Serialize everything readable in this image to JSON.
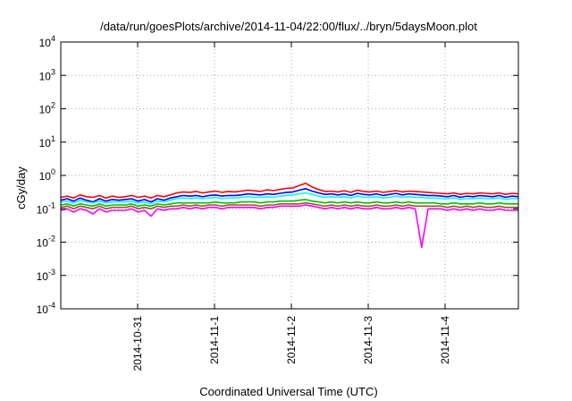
{
  "chart_data": {
    "type": "line",
    "title": "/data/run/goesPlots/archive/2014-11-04/22:00/flux/../bryn/5daysMoon.plot",
    "xlabel": "Coordinated Universal Time (UTC)",
    "ylabel": "cGy/day",
    "yscale": "log",
    "ylim": [
      0.0001,
      10000
    ],
    "xlim_days": [
      "2014-10-30 04:00",
      "2014-11-04 22:00"
    ],
    "y_ticks": [
      {
        "base": "10",
        "exp": "-4",
        "value": 0.0001
      },
      {
        "base": "10",
        "exp": "-3",
        "value": 0.001
      },
      {
        "base": "10",
        "exp": "-2",
        "value": 0.01
      },
      {
        "base": "10",
        "exp": "-1",
        "value": 0.1
      },
      {
        "base": "10",
        "exp": "0",
        "value": 1
      },
      {
        "base": "10",
        "exp": "1",
        "value": 10
      },
      {
        "base": "10",
        "exp": "2",
        "value": 100
      },
      {
        "base": "10",
        "exp": "3",
        "value": 1000
      },
      {
        "base": "10",
        "exp": "4",
        "value": 10000
      }
    ],
    "x_ticks": [
      "2014-10-31",
      "2014-11-1",
      "2014-11-2",
      "2014-11-3",
      "2014-11-4"
    ],
    "grid": true,
    "series": [
      {
        "color": "#ff0000",
        "values": [
          0.22,
          0.24,
          0.21,
          0.26,
          0.23,
          0.22,
          0.25,
          0.21,
          0.24,
          0.22,
          0.23,
          0.25,
          0.22,
          0.24,
          0.21,
          0.25,
          0.23,
          0.26,
          0.3,
          0.32,
          0.31,
          0.33,
          0.3,
          0.32,
          0.34,
          0.31,
          0.33,
          0.32,
          0.34,
          0.36,
          0.35,
          0.33,
          0.37,
          0.35,
          0.38,
          0.41,
          0.42,
          0.5,
          0.58,
          0.45,
          0.38,
          0.33,
          0.34,
          0.32,
          0.35,
          0.31,
          0.36,
          0.33,
          0.32,
          0.34,
          0.31,
          0.33,
          0.35,
          0.32,
          0.34,
          0.33,
          0.32,
          0.31,
          0.3,
          0.29,
          0.28,
          0.3,
          0.27,
          0.29,
          0.28,
          0.3,
          0.29,
          0.28,
          0.3,
          0.27,
          0.29,
          0.28
        ]
      },
      {
        "color": "#0000ff",
        "values": [
          0.18,
          0.2,
          0.17,
          0.21,
          0.18,
          0.16,
          0.2,
          0.17,
          0.19,
          0.18,
          0.19,
          0.2,
          0.17,
          0.19,
          0.16,
          0.2,
          0.18,
          0.21,
          0.23,
          0.25,
          0.24,
          0.25,
          0.23,
          0.25,
          0.26,
          0.24,
          0.25,
          0.25,
          0.26,
          0.28,
          0.27,
          0.26,
          0.28,
          0.27,
          0.29,
          0.31,
          0.32,
          0.36,
          0.4,
          0.34,
          0.3,
          0.27,
          0.28,
          0.26,
          0.28,
          0.25,
          0.29,
          0.27,
          0.26,
          0.28,
          0.25,
          0.27,
          0.29,
          0.26,
          0.28,
          0.27,
          0.26,
          0.25,
          0.25,
          0.24,
          0.23,
          0.25,
          0.22,
          0.24,
          0.23,
          0.25,
          0.24,
          0.23,
          0.25,
          0.22,
          0.24,
          0.23
        ]
      },
      {
        "color": "#00ffff",
        "values": [
          0.16,
          0.17,
          0.15,
          0.18,
          0.16,
          0.15,
          0.17,
          0.15,
          0.16,
          0.16,
          0.16,
          0.17,
          0.15,
          0.16,
          0.14,
          0.17,
          0.16,
          0.18,
          0.2,
          0.21,
          0.2,
          0.21,
          0.2,
          0.21,
          0.22,
          0.2,
          0.21,
          0.21,
          0.22,
          0.23,
          0.22,
          0.22,
          0.23,
          0.22,
          0.24,
          0.25,
          0.26,
          0.28,
          0.3,
          0.27,
          0.24,
          0.22,
          0.23,
          0.22,
          0.23,
          0.21,
          0.24,
          0.22,
          0.22,
          0.23,
          0.21,
          0.22,
          0.24,
          0.22,
          0.23,
          0.22,
          0.22,
          0.21,
          0.21,
          0.2,
          0.2,
          0.21,
          0.19,
          0.2,
          0.2,
          0.21,
          0.2,
          0.2,
          0.21,
          0.19,
          0.2,
          0.2
        ]
      },
      {
        "color": "#00c000",
        "values": [
          0.13,
          0.14,
          0.12,
          0.14,
          0.13,
          0.12,
          0.14,
          0.12,
          0.13,
          0.13,
          0.13,
          0.14,
          0.12,
          0.13,
          0.12,
          0.14,
          0.13,
          0.14,
          0.15,
          0.15,
          0.15,
          0.15,
          0.15,
          0.15,
          0.16,
          0.15,
          0.15,
          0.15,
          0.16,
          0.16,
          0.16,
          0.15,
          0.16,
          0.16,
          0.17,
          0.17,
          0.17,
          0.18,
          0.19,
          0.17,
          0.16,
          0.15,
          0.16,
          0.15,
          0.16,
          0.15,
          0.16,
          0.15,
          0.15,
          0.16,
          0.15,
          0.15,
          0.16,
          0.15,
          0.16,
          0.15,
          0.15,
          0.15,
          0.15,
          0.14,
          0.14,
          0.15,
          0.14,
          0.14,
          0.14,
          0.15,
          0.14,
          0.14,
          0.15,
          0.14,
          0.14,
          0.14
        ]
      },
      {
        "color": "#a0522d",
        "values": [
          0.11,
          0.12,
          0.1,
          0.12,
          0.11,
          0.1,
          0.12,
          0.1,
          0.11,
          0.11,
          0.11,
          0.12,
          0.1,
          0.11,
          0.1,
          0.12,
          0.11,
          0.12,
          0.12,
          0.13,
          0.12,
          0.13,
          0.12,
          0.13,
          0.13,
          0.12,
          0.13,
          0.13,
          0.13,
          0.13,
          0.13,
          0.12,
          0.13,
          0.13,
          0.14,
          0.14,
          0.14,
          0.14,
          0.15,
          0.14,
          0.13,
          0.12,
          0.13,
          0.12,
          0.13,
          0.12,
          0.13,
          0.12,
          0.12,
          0.13,
          0.12,
          0.12,
          0.13,
          0.12,
          0.13,
          0.12,
          0.12,
          0.12,
          0.12,
          0.12,
          0.11,
          0.12,
          0.11,
          0.12,
          0.11,
          0.12,
          0.11,
          0.11,
          0.12,
          0.11,
          0.11,
          0.11
        ]
      },
      {
        "color": "#ff00ff",
        "values": [
          0.09,
          0.1,
          0.08,
          0.1,
          0.09,
          0.07,
          0.1,
          0.08,
          0.09,
          0.09,
          0.09,
          0.1,
          0.08,
          0.09,
          0.06,
          0.1,
          0.09,
          0.1,
          0.1,
          0.11,
          0.1,
          0.11,
          0.1,
          0.11,
          0.11,
          0.1,
          0.11,
          0.11,
          0.11,
          0.11,
          0.11,
          0.1,
          0.11,
          0.11,
          0.12,
          0.12,
          0.12,
          0.12,
          0.13,
          0.12,
          0.11,
          0.1,
          0.11,
          0.1,
          0.11,
          0.1,
          0.11,
          0.1,
          0.1,
          0.11,
          0.1,
          0.1,
          0.11,
          0.1,
          0.11,
          0.1,
          0.007,
          0.1,
          0.1,
          0.1,
          0.09,
          0.1,
          0.09,
          0.1,
          0.09,
          0.1,
          0.09,
          0.09,
          0.1,
          0.09,
          0.09,
          0.09
        ]
      }
    ]
  }
}
